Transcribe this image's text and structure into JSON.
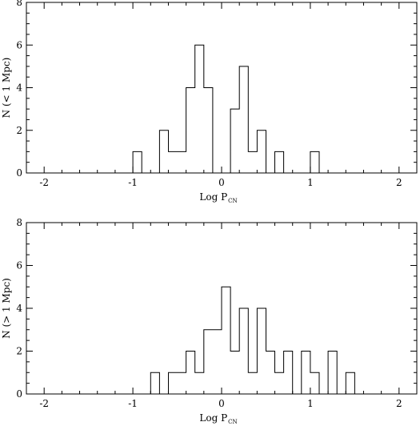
{
  "chart_data": [
    {
      "type": "bar",
      "xlabel": "Log P",
      "xlabel_sub": "CN",
      "ylabel": "N (< 1 Mpc)",
      "xlim": [
        -2.2,
        2.2
      ],
      "ylim": [
        0,
        8
      ],
      "x_ticks": [
        -2,
        -1,
        0,
        1,
        2
      ],
      "x_tick_labels": [
        "-2",
        "-1",
        "0",
        "1",
        "2"
      ],
      "y_ticks": [
        0,
        2,
        4,
        6,
        8
      ],
      "y_tick_labels": [
        "0",
        "2",
        "4",
        "6",
        "8"
      ],
      "x_minor_step": 0.2,
      "y_minor_step": 0.5,
      "bin_width": 0.1,
      "bins": [
        {
          "x0": -1.0,
          "value": 1
        },
        {
          "x0": -0.9,
          "value": 0
        },
        {
          "x0": -0.8,
          "value": 0
        },
        {
          "x0": -0.7,
          "value": 2
        },
        {
          "x0": -0.6,
          "value": 1
        },
        {
          "x0": -0.5,
          "value": 1
        },
        {
          "x0": -0.4,
          "value": 4
        },
        {
          "x0": -0.3,
          "value": 6
        },
        {
          "x0": -0.2,
          "value": 4
        },
        {
          "x0": -0.1,
          "value": 0
        },
        {
          "x0": 0.0,
          "value": 0
        },
        {
          "x0": 0.1,
          "value": 3
        },
        {
          "x0": 0.2,
          "value": 5
        },
        {
          "x0": 0.3,
          "value": 1
        },
        {
          "x0": 0.4,
          "value": 2
        },
        {
          "x0": 0.5,
          "value": 0
        },
        {
          "x0": 0.6,
          "value": 1
        },
        {
          "x0": 0.7,
          "value": 0
        },
        {
          "x0": 0.8,
          "value": 0
        },
        {
          "x0": 0.9,
          "value": 0
        },
        {
          "x0": 1.0,
          "value": 1
        }
      ]
    },
    {
      "type": "bar",
      "xlabel": "Log P",
      "xlabel_sub": "CN",
      "ylabel": "N (> 1 Mpc)",
      "xlim": [
        -2.2,
        2.2
      ],
      "ylim": [
        0,
        8
      ],
      "x_ticks": [
        -2,
        -1,
        0,
        1,
        2
      ],
      "x_tick_labels": [
        "-2",
        "-1",
        "0",
        "1",
        "2"
      ],
      "y_ticks": [
        0,
        2,
        4,
        6,
        8
      ],
      "y_tick_labels": [
        "0",
        "2",
        "4",
        "6",
        "8"
      ],
      "x_minor_step": 0.2,
      "y_minor_step": 0.5,
      "bin_width": 0.1,
      "bins": [
        {
          "x0": -0.8,
          "value": 1
        },
        {
          "x0": -0.7,
          "value": 0
        },
        {
          "x0": -0.6,
          "value": 1
        },
        {
          "x0": -0.5,
          "value": 1
        },
        {
          "x0": -0.4,
          "value": 2
        },
        {
          "x0": -0.3,
          "value": 1
        },
        {
          "x0": -0.2,
          "value": 3
        },
        {
          "x0": -0.1,
          "value": 3
        },
        {
          "x0": 0.0,
          "value": 5
        },
        {
          "x0": 0.1,
          "value": 2
        },
        {
          "x0": 0.2,
          "value": 4
        },
        {
          "x0": 0.3,
          "value": 1
        },
        {
          "x0": 0.4,
          "value": 4
        },
        {
          "x0": 0.5,
          "value": 2
        },
        {
          "x0": 0.6,
          "value": 1
        },
        {
          "x0": 0.7,
          "value": 2
        },
        {
          "x0": 0.8,
          "value": 0
        },
        {
          "x0": 0.9,
          "value": 2
        },
        {
          "x0": 1.0,
          "value": 1
        },
        {
          "x0": 1.1,
          "value": 0
        },
        {
          "x0": 1.2,
          "value": 2
        },
        {
          "x0": 1.3,
          "value": 0
        },
        {
          "x0": 1.4,
          "value": 1
        }
      ]
    }
  ]
}
